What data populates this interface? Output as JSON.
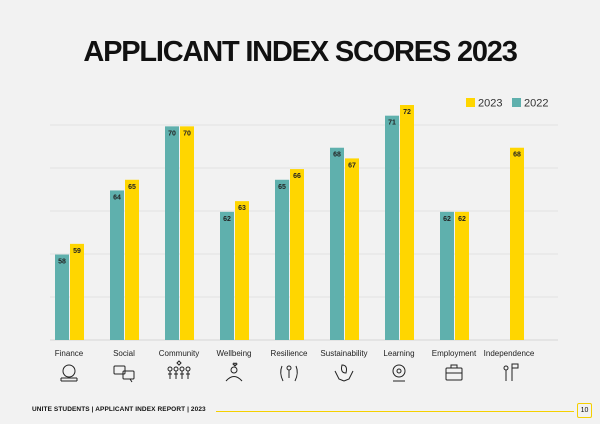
{
  "chart_data": {
    "type": "bar",
    "title": "APPLICANT INDEX SCORES 2023",
    "categories": [
      "Finance",
      "Social",
      "Community",
      "Wellbeing",
      "Resilience",
      "Sustainability",
      "Learning",
      "Employment",
      "Independence"
    ],
    "series": [
      {
        "name": "2022",
        "color": "#5fb0ad",
        "values": [
          58,
          64,
          70,
          62,
          65,
          68,
          71,
          62,
          null
        ]
      },
      {
        "name": "2023",
        "color": "#ffd600",
        "values": [
          59,
          65,
          70,
          63,
          66,
          67,
          72,
          62,
          68
        ]
      }
    ],
    "legend_order": [
      "2023",
      "2022"
    ],
    "legend_position": "top-right",
    "ylim": [
      50,
      72
    ],
    "grid": true,
    "icons": [
      "money-stack-icon",
      "speech-bubbles-icon",
      "people-group-icon",
      "person-heart-icon",
      "person-shield-icon",
      "hands-leaf-icon",
      "light-bulb-icon",
      "briefcase-icon",
      "person-flag-icon"
    ]
  },
  "footer": {
    "text": "UNITE STUDENTS | APPLICANT INDEX REPORT | 2023",
    "page": "10"
  }
}
